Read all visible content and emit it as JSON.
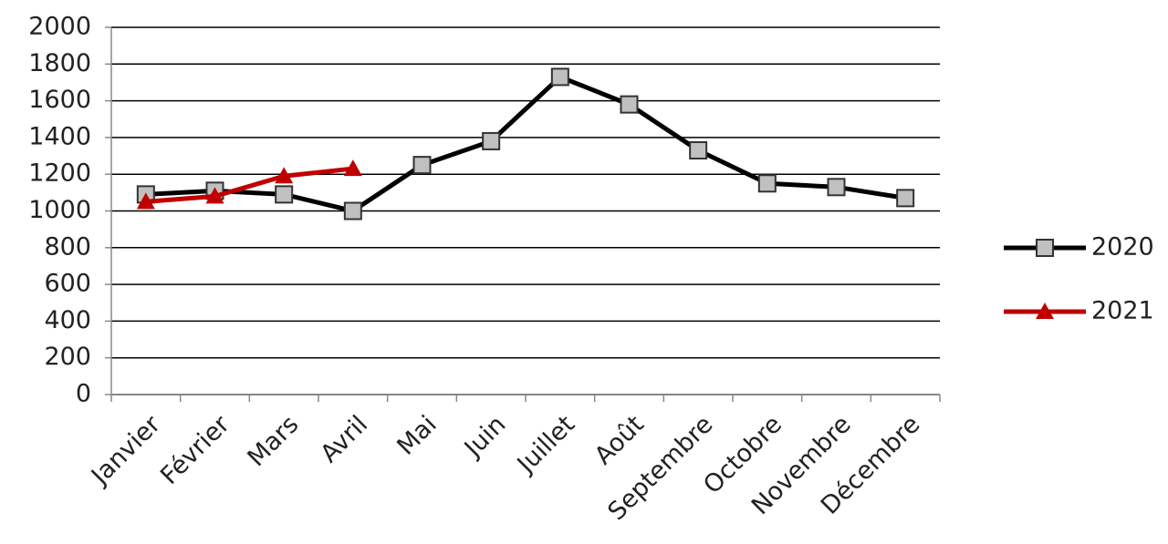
{
  "chart_data": {
    "type": "line",
    "categories": [
      "Janvier",
      "Février",
      "Mars",
      "Avril",
      "Mai",
      "Juin",
      "Juillet",
      "Août",
      "Septembre",
      "Octobre",
      "Novembre",
      "Décembre"
    ],
    "series": [
      {
        "name": "2020",
        "color": "#000000",
        "marker": "square",
        "marker_color": "#c0c0c0",
        "values": [
          1090,
          1110,
          1090,
          1000,
          1250,
          1380,
          1730,
          1580,
          1330,
          1150,
          1130,
          1070
        ]
      },
      {
        "name": "2021",
        "color": "#c00000",
        "marker": "triangle",
        "marker_color": "#c00000",
        "values": [
          1050,
          1080,
          1190,
          1230,
          null,
          null,
          null,
          null,
          null,
          null,
          null,
          null
        ]
      }
    ],
    "ylim": [
      0,
      2000
    ],
    "yticks": [
      0,
      200,
      400,
      600,
      800,
      1000,
      1200,
      1400,
      1600,
      1800,
      2000
    ],
    "grid": true,
    "legend": "right"
  }
}
